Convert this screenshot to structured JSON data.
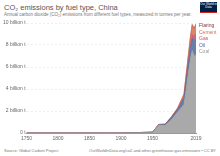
{
  "chart_data": {
    "type": "area",
    "title": "CO₂ emissions by fuel type, China",
    "subtitle": "Annual carbon dioxide (CO₂) emissions from different fuel types, measured in tonnes per year.",
    "source": "Source: Global Carbon Project",
    "url": "OurWorldInData.org/co2-and-other-greenhouse-gas-emissions • CC BY",
    "logo": "Our World in Data",
    "stacked": true,
    "grid": true,
    "legend": "right",
    "x": [
      1750,
      1800,
      1850,
      1900,
      1950,
      1960,
      1970,
      1980,
      1990,
      2000,
      2005,
      2010,
      2013,
      2016,
      2019
    ],
    "xlim": [
      1750,
      2019
    ],
    "xticks": [
      1750,
      1800,
      1850,
      1900,
      1950,
      2019
    ],
    "ylim": [
      0,
      10000000000
    ],
    "yticks": [
      {
        "value": 0,
        "label": "0 t"
      },
      {
        "value": 2000000000,
        "label": "2 billion t"
      },
      {
        "value": 4000000000,
        "label": "4 billion t"
      },
      {
        "value": 6000000000,
        "label": "6 billion t"
      },
      {
        "value": 8000000000,
        "label": "8 billion t"
      },
      {
        "value": 10000000000,
        "label": "10 billion t"
      }
    ],
    "series": [
      {
        "name": "Coal",
        "color": "#9a9a9a",
        "values": [
          0,
          0,
          0,
          1000000,
          70000000,
          750000000,
          700000000,
          1200000000,
          1900000000,
          2600000000,
          4700000000,
          6700000000,
          7500000000,
          7000000000,
          7100000000
        ]
      },
      {
        "name": "Oil",
        "color": "#4c6a9c",
        "values": [
          0,
          0,
          0,
          0,
          3000000,
          20000000,
          80000000,
          200000000,
          250000000,
          600000000,
          800000000,
          1000000000,
          1100000000,
          1300000000,
          1500000000
        ]
      },
      {
        "name": "Gas",
        "color": "#c15065",
        "values": [
          0,
          0,
          0,
          0,
          0,
          2000000,
          6000000,
          30000000,
          30000000,
          50000000,
          100000000,
          200000000,
          350000000,
          400000000,
          500000000
        ]
      },
      {
        "name": "Cement",
        "color": "#d96e4f",
        "values": [
          0,
          0,
          0,
          0,
          1000000,
          10000000,
          10000000,
          40000000,
          100000000,
          300000000,
          500000000,
          750000000,
          900000000,
          800000000,
          800000000
        ]
      },
      {
        "name": "Flaring",
        "color": "#883039",
        "values": [
          0,
          0,
          0,
          0,
          0,
          0,
          0,
          0,
          0,
          0,
          0,
          1000000,
          2000000,
          2000000,
          3000000
        ]
      }
    ]
  }
}
